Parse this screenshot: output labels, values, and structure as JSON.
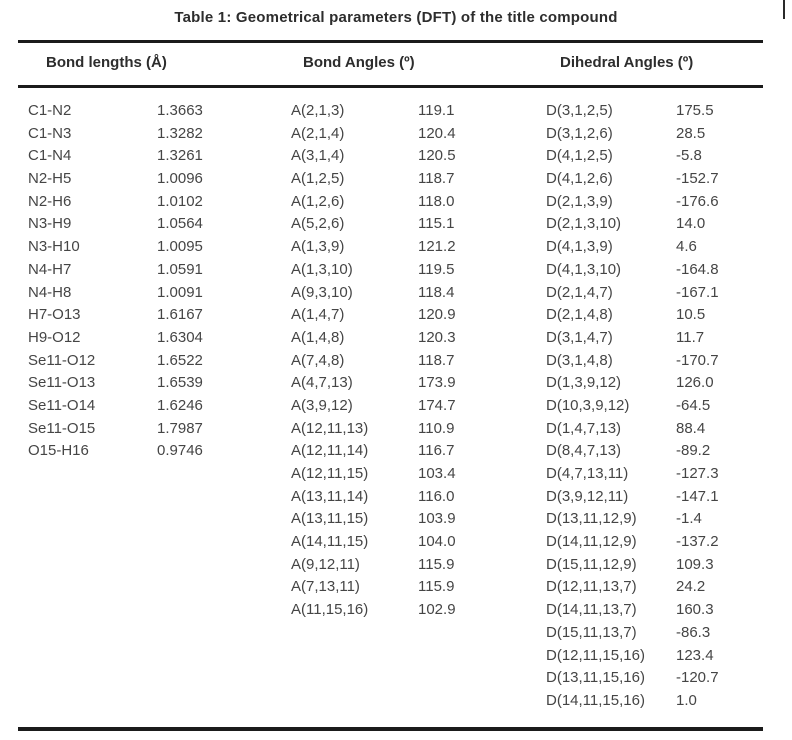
{
  "title": "Table 1: Geometrical parameters (DFT) of the title compound",
  "colors": {
    "background": "#ffffff",
    "text": "#454545",
    "heading_text": "#2d2d2d",
    "rule": "#1b1b1b"
  },
  "chart_data": {
    "type": "table",
    "title": "Table 1: Geometrical parameters (DFT) of the title compound"
  },
  "table": {
    "columns": [
      {
        "header": "Bond lengths (Å)",
        "rows": [
          {
            "label": "C1-N2",
            "value": "1.3663"
          },
          {
            "label": "C1-N3",
            "value": "1.3282"
          },
          {
            "label": "C1-N4",
            "value": "1.3261"
          },
          {
            "label": "N2-H5",
            "value": "1.0096"
          },
          {
            "label": "N2-H6",
            "value": "1.0102"
          },
          {
            "label": "N3-H9",
            "value": "1.0564"
          },
          {
            "label": "N3-H10",
            "value": "1.0095"
          },
          {
            "label": "N4-H7",
            "value": "1.0591"
          },
          {
            "label": "N4-H8",
            "value": "1.0091"
          },
          {
            "label": "H7-O13",
            "value": "1.6167"
          },
          {
            "label": "H9-O12",
            "value": "1.6304"
          },
          {
            "label": "Se11-O12",
            "value": "1.6522"
          },
          {
            "label": "Se11-O13",
            "value": "1.6539"
          },
          {
            "label": "Se11-O14",
            "value": "1.6246"
          },
          {
            "label": "Se11-O15",
            "value": "1.7987"
          },
          {
            "label": "O15-H16",
            "value": "0.9746"
          }
        ]
      },
      {
        "header": "Bond Angles (º)",
        "rows": [
          {
            "label": "A(2,1,3)",
            "value": "119.1"
          },
          {
            "label": "A(2,1,4)",
            "value": "120.4"
          },
          {
            "label": "A(3,1,4)",
            "value": "120.5"
          },
          {
            "label": "A(1,2,5)",
            "value": "118.7"
          },
          {
            "label": "A(1,2,6)",
            "value": "118.0"
          },
          {
            "label": "A(5,2,6)",
            "value": "115.1"
          },
          {
            "label": "A(1,3,9)",
            "value": "121.2"
          },
          {
            "label": "A(1,3,10)",
            "value": "119.5"
          },
          {
            "label": "A(9,3,10)",
            "value": "118.4"
          },
          {
            "label": "A(1,4,7)",
            "value": "120.9"
          },
          {
            "label": "A(1,4,8)",
            "value": "120.3"
          },
          {
            "label": "A(7,4,8)",
            "value": "118.7"
          },
          {
            "label": "A(4,7,13)",
            "value": "173.9"
          },
          {
            "label": "A(3,9,12)",
            "value": "174.7"
          },
          {
            "label": "A(12,11,13)",
            "value": "110.9"
          },
          {
            "label": "A(12,11,14)",
            "value": "116.7"
          },
          {
            "label": "A(12,11,15)",
            "value": "103.4"
          },
          {
            "label": "A(13,11,14)",
            "value": "116.0"
          },
          {
            "label": "A(13,11,15)",
            "value": "103.9"
          },
          {
            "label": "A(14,11,15)",
            "value": "104.0"
          },
          {
            "label": "A(9,12,11)",
            "value": "115.9"
          },
          {
            "label": "A(7,13,11)",
            "value": "115.9"
          },
          {
            "label": "A(11,15,16)",
            "value": "102.9"
          }
        ]
      },
      {
        "header": "Dihedral Angles (º)",
        "rows": [
          {
            "label": "D(3,1,2,5)",
            "value": "175.5"
          },
          {
            "label": "D(3,1,2,6)",
            "value": "28.5"
          },
          {
            "label": "D(4,1,2,5)",
            "value": "-5.8"
          },
          {
            "label": "D(4,1,2,6)",
            "value": "-152.7"
          },
          {
            "label": "D(2,1,3,9)",
            "value": "-176.6"
          },
          {
            "label": "D(2,1,3,10)",
            "value": "14.0"
          },
          {
            "label": "D(4,1,3,9)",
            "value": "4.6"
          },
          {
            "label": "D(4,1,3,10)",
            "value": "-164.8"
          },
          {
            "label": "D(2,1,4,7)",
            "value": "-167.1"
          },
          {
            "label": "D(2,1,4,8)",
            "value": "10.5"
          },
          {
            "label": "D(3,1,4,7)",
            "value": "11.7"
          },
          {
            "label": "D(3,1,4,8)",
            "value": "-170.7"
          },
          {
            "label": "D(1,3,9,12)",
            "value": "126.0"
          },
          {
            "label": "D(10,3,9,12)",
            "value": "-64.5"
          },
          {
            "label": "D(1,4,7,13)",
            "value": "88.4"
          },
          {
            "label": "D(8,4,7,13)",
            "value": "-89.2"
          },
          {
            "label": "D(4,7,13,11)",
            "value": "-127.3"
          },
          {
            "label": "D(3,9,12,11)",
            "value": "-147.1"
          },
          {
            "label": "D(13,11,12,9)",
            "value": "-1.4"
          },
          {
            "label": "D(14,11,12,9)",
            "value": "-137.2"
          },
          {
            "label": "D(15,11,12,9)",
            "value": "109.3"
          },
          {
            "label": "D(12,11,13,7)",
            "value": "24.2"
          },
          {
            "label": "D(14,11,13,7)",
            "value": "160.3"
          },
          {
            "label": "D(15,11,13,7)",
            "value": "-86.3"
          },
          {
            "label": "D(12,11,15,16)",
            "value": "123.4"
          },
          {
            "label": "D(13,11,15,16)",
            "value": "-120.7"
          },
          {
            "label": "D(14,11,15,16)",
            "value": "1.0"
          }
        ]
      }
    ]
  }
}
